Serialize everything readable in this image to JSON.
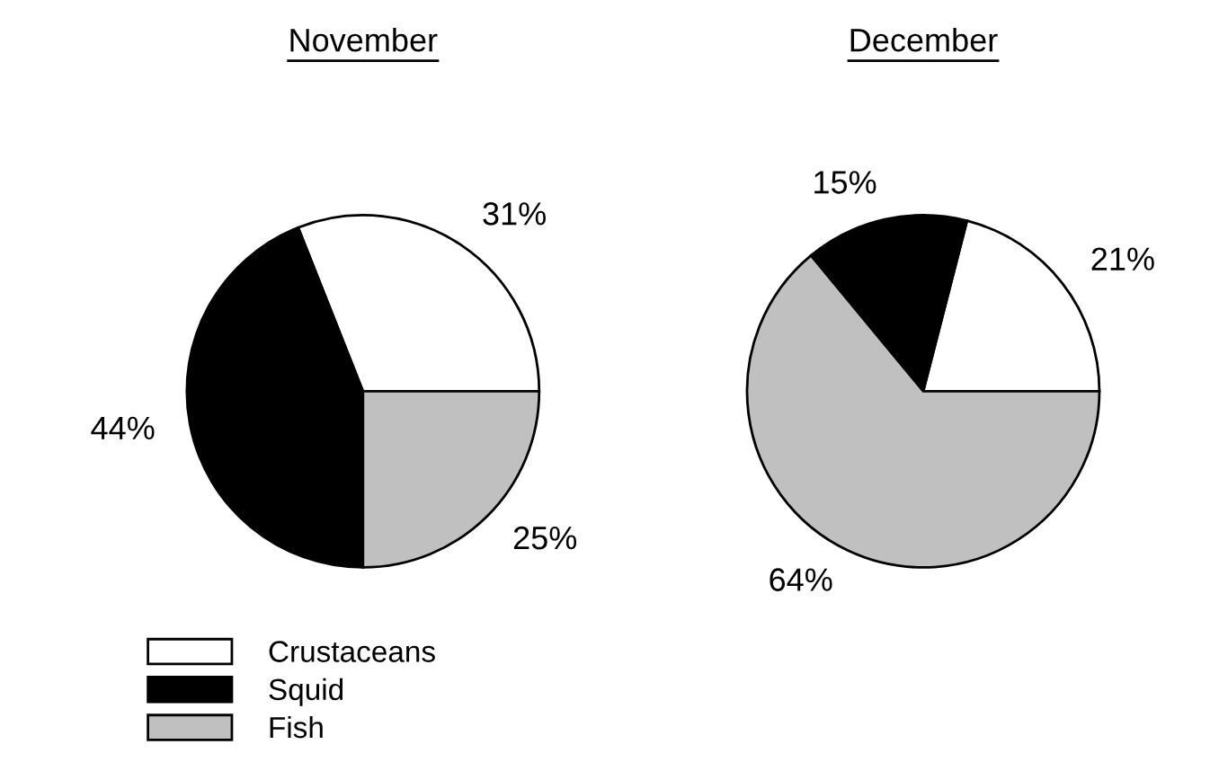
{
  "chart_data": [
    {
      "type": "pie",
      "title": "November",
      "categories": [
        "Crustaceans",
        "Squid",
        "Fish"
      ],
      "values": [
        31,
        44,
        25
      ],
      "colors": [
        "#ffffff",
        "#000000",
        "#c0c0c0"
      ],
      "value_labels": [
        "31%",
        "44%",
        "25%"
      ],
      "legend": "bottom left"
    },
    {
      "type": "pie",
      "title": "December",
      "categories": [
        null,
        null,
        null
      ],
      "values": [
        21,
        15,
        64
      ],
      "colors": [
        "#ffffff",
        "#000000",
        "#c0c0c0"
      ],
      "value_labels": [
        "21%",
        "15%",
        "64%"
      ]
    }
  ]
}
